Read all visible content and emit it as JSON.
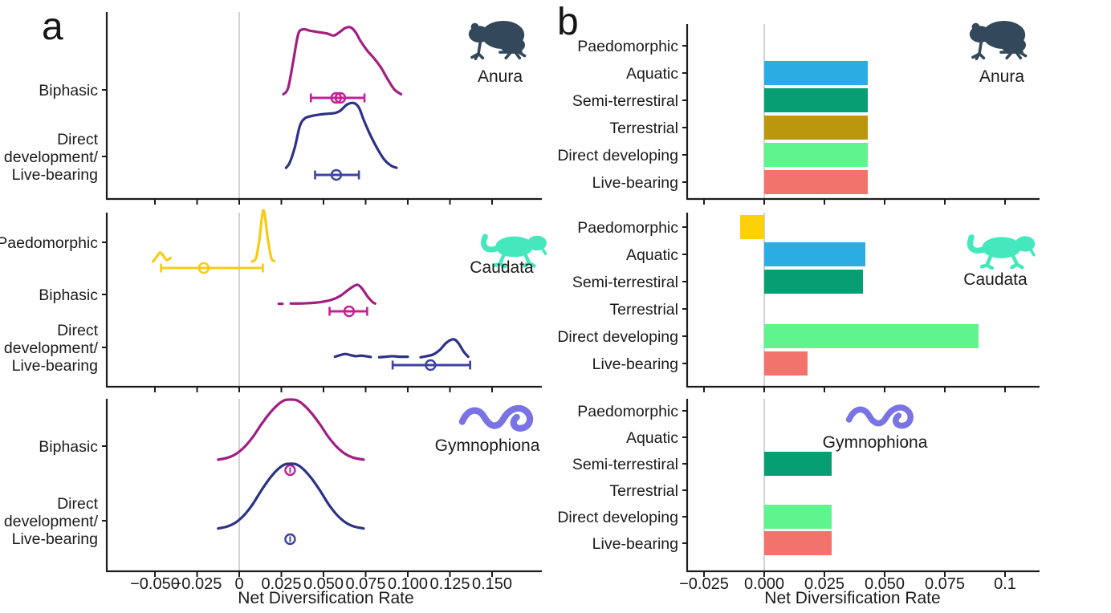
{
  "panels": {
    "a": {
      "letter": "a"
    },
    "b": {
      "letter": "b"
    }
  },
  "colors": {
    "axis": "#1c1c1c",
    "text": "#1b1b1b",
    "zero_line": "#c8c8c8",
    "magenta_line": "#a21e83",
    "magenta_interval": "#c32195",
    "navy_line": "#2c3387",
    "navy_interval": "#3d43a0",
    "yellow_line": "#f7cb11",
    "yellow_interval": "#f7cb11",
    "anura_icon": "#33495b",
    "caudata_icon": "#45e8bd",
    "gymnophiona_icon": "#7a73e6",
    "bar_paedomorphic": "#fdd108",
    "bar_aquatic": "#2bace2",
    "bar_semi_terrestrial": "#079e74",
    "bar_terrestrial": "#ba970c",
    "bar_direct_developing": "#5ff48d",
    "bar_live_bearing": "#f2736c"
  },
  "chart_data": [
    {
      "id": "a",
      "type": "ridgeline-density",
      "xlabel": "Net Diversification Rate",
      "xlim": [
        -0.0785,
        0.178
      ],
      "xticks": [
        -0.05,
        -0.025,
        0,
        0.025,
        0.05,
        0.075,
        0.1,
        0.125,
        0.15
      ],
      "xtick_labels": [
        "−0.050",
        "−0.025",
        "0",
        "0.025",
        "0.050",
        "0.075",
        "0.100",
        "0.125",
        "0.150"
      ],
      "zero_line": 0,
      "height_scale": "relative 0-1 per row",
      "subplots": [
        {
          "taxon": "Anura",
          "icon": "frog-icon",
          "rows": [
            {
              "label": "Biphasic",
              "label_lines": [
                "Biphasic"
              ],
              "color_key": "magenta",
              "density": {
                "segments": [
                  [
                    [
                      0.0262,
                      0.03
                    ],
                    [
                      0.029,
                      0.12
                    ],
                    [
                      0.032,
                      0.5
                    ],
                    [
                      0.035,
                      0.9
                    ],
                    [
                      0.038,
                      0.97
                    ],
                    [
                      0.042,
                      0.95
                    ],
                    [
                      0.047,
                      0.93
                    ],
                    [
                      0.052,
                      0.91
                    ],
                    [
                      0.056,
                      0.88
                    ],
                    [
                      0.059,
                      0.92
                    ],
                    [
                      0.063,
                      0.99
                    ],
                    [
                      0.066,
                      1.0
                    ],
                    [
                      0.069,
                      0.93
                    ],
                    [
                      0.072,
                      0.8
                    ],
                    [
                      0.076,
                      0.66
                    ],
                    [
                      0.08,
                      0.55
                    ],
                    [
                      0.084,
                      0.42
                    ],
                    [
                      0.088,
                      0.25
                    ],
                    [
                      0.092,
                      0.1
                    ],
                    [
                      0.096,
                      0.03
                    ]
                  ]
                ]
              },
              "interval": {
                "low": 0.0425,
                "high": 0.0743,
                "markers": [
                  0.0575,
                  0.06
                ]
              }
            },
            {
              "label": "Direct development/ Live-bearing",
              "label_lines": [
                "Direct",
                "development/",
                "Live-bearing"
              ],
              "color_key": "navy",
              "density": {
                "segments": [
                  [
                    [
                      0.0278,
                      0.03
                    ],
                    [
                      0.03,
                      0.1
                    ],
                    [
                      0.033,
                      0.3
                    ],
                    [
                      0.036,
                      0.58
                    ],
                    [
                      0.039,
                      0.68
                    ],
                    [
                      0.043,
                      0.71
                    ],
                    [
                      0.048,
                      0.73
                    ],
                    [
                      0.053,
                      0.74
                    ],
                    [
                      0.057,
                      0.75
                    ],
                    [
                      0.06,
                      0.78
                    ],
                    [
                      0.064,
                      0.86
                    ],
                    [
                      0.068,
                      0.88
                    ],
                    [
                      0.071,
                      0.82
                    ],
                    [
                      0.074,
                      0.65
                    ],
                    [
                      0.078,
                      0.45
                    ],
                    [
                      0.082,
                      0.28
                    ],
                    [
                      0.086,
                      0.14
                    ],
                    [
                      0.09,
                      0.06
                    ],
                    [
                      0.0933,
                      0.03
                    ]
                  ]
                ]
              },
              "interval": {
                "low": 0.045,
                "high": 0.071,
                "markers": [
                  0.0576
                ]
              }
            }
          ]
        },
        {
          "taxon": "Caudata",
          "icon": "salamander-icon",
          "rows": [
            {
              "label": "Paedomorphic",
              "label_lines": [
                "Paedomorphic"
              ],
              "color_key": "yellow",
              "density": {
                "segments": [
                  [
                    [
                      -0.0511,
                      0.03
                    ],
                    [
                      -0.049,
                      0.12
                    ],
                    [
                      -0.047,
                      0.2
                    ],
                    [
                      -0.045,
                      0.14
                    ],
                    [
                      -0.043,
                      0.06
                    ],
                    [
                      -0.0408,
                      0.1
                    ]
                  ],
                  [
                    [
                      0.0076,
                      0.03
                    ],
                    [
                      0.01,
                      0.1
                    ],
                    [
                      0.012,
                      0.45
                    ],
                    [
                      0.0144,
                      1.0
                    ],
                    [
                      0.017,
                      0.45
                    ],
                    [
                      0.019,
                      0.1
                    ],
                    [
                      0.0208,
                      0.04
                    ]
                  ]
                ]
              },
              "interval": {
                "low": -0.0464,
                "high": 0.014,
                "markers": [
                  -0.021
                ]
              }
            },
            {
              "label": "Biphasic",
              "label_lines": [
                "Biphasic"
              ],
              "color_key": "magenta",
              "density": {
                "segments": [
                  [
                    [
                      0.0235,
                      0.07
                    ],
                    [
                      0.0256,
                      0.07
                    ]
                  ],
                  [
                    [
                      0.0306,
                      0.08
                    ],
                    [
                      0.035,
                      0.08
                    ],
                    [
                      0.04,
                      0.09
                    ],
                    [
                      0.045,
                      0.11
                    ],
                    [
                      0.05,
                      0.15
                    ],
                    [
                      0.055,
                      0.22
                    ],
                    [
                      0.06,
                      0.36
                    ],
                    [
                      0.064,
                      0.55
                    ],
                    [
                      0.068,
                      0.72
                    ],
                    [
                      0.0705,
                      0.76
                    ],
                    [
                      0.073,
                      0.62
                    ],
                    [
                      0.076,
                      0.35
                    ],
                    [
                      0.079,
                      0.14
                    ],
                    [
                      0.0806,
                      0.08
                    ]
                  ]
                ]
              },
              "interval": {
                "low": 0.0536,
                "high": 0.0759,
                "markers": [
                  0.0652
                ]
              }
            },
            {
              "label": "Direct development/ Live-bearing",
              "label_lines": [
                "Direct",
                "development/",
                "Live-bearing"
              ],
              "color_key": "navy",
              "density": {
                "segments": [
                  [
                    [
                      0.0568,
                      0.1
                    ],
                    [
                      0.06,
                      0.16
                    ],
                    [
                      0.063,
                      0.2
                    ],
                    [
                      0.066,
                      0.16
                    ],
                    [
                      0.069,
                      0.12
                    ],
                    [
                      0.072,
                      0.14
                    ],
                    [
                      0.075,
                      0.12
                    ],
                    [
                      0.078,
                      0.09
                    ]
                  ],
                  [
                    [
                      0.083,
                      0.08
                    ],
                    [
                      0.087,
                      0.1
                    ],
                    [
                      0.091,
                      0.12
                    ],
                    [
                      0.095,
                      0.1
                    ],
                    [
                      0.1,
                      0.1
                    ]
                  ],
                  [
                    [
                      0.1076,
                      0.08
                    ],
                    [
                      0.111,
                      0.12
                    ],
                    [
                      0.115,
                      0.18
                    ],
                    [
                      0.119,
                      0.35
                    ],
                    [
                      0.123,
                      0.62
                    ],
                    [
                      0.1272,
                      0.74
                    ],
                    [
                      0.13,
                      0.6
                    ],
                    [
                      0.133,
                      0.3
                    ],
                    [
                      0.1358,
                      0.1
                    ]
                  ]
                ]
              },
              "interval": {
                "low": 0.091,
                "high": 0.137,
                "markers": [
                  0.1135
                ]
              }
            }
          ]
        },
        {
          "taxon": "Gymnophiona",
          "icon": "caecilian-icon",
          "rows": [
            {
              "label": "Biphasic",
              "label_lines": [
                "Biphasic"
              ],
              "color_key": "magenta",
              "density": {
                "segments": [
                  [
                    [
                      -0.0125,
                      0.04
                    ],
                    [
                      -0.007,
                      0.07
                    ],
                    [
                      -0.002,
                      0.13
                    ],
                    [
                      0.003,
                      0.24
                    ],
                    [
                      0.008,
                      0.4
                    ],
                    [
                      0.013,
                      0.6
                    ],
                    [
                      0.018,
                      0.78
                    ],
                    [
                      0.023,
                      0.92
                    ],
                    [
                      0.027,
                      0.99
                    ],
                    [
                      0.0306,
                      1.0
                    ],
                    [
                      0.034,
                      0.99
                    ],
                    [
                      0.038,
                      0.92
                    ],
                    [
                      0.043,
                      0.78
                    ],
                    [
                      0.048,
                      0.6
                    ],
                    [
                      0.053,
                      0.4
                    ],
                    [
                      0.058,
                      0.24
                    ],
                    [
                      0.063,
                      0.13
                    ],
                    [
                      0.068,
                      0.07
                    ],
                    [
                      0.0738,
                      0.04
                    ]
                  ]
                ]
              },
              "interval": {
                "low": null,
                "high": null,
                "markers": [
                  0.0302
                ],
                "point_only": true
              }
            },
            {
              "label": "Direct development/ Live-bearing",
              "label_lines": [
                "Direct",
                "development/",
                "Live-bearing"
              ],
              "color_key": "navy",
              "density": {
                "segments": [
                  [
                    [
                      -0.0125,
                      0.04
                    ],
                    [
                      -0.007,
                      0.07
                    ],
                    [
                      -0.002,
                      0.13
                    ],
                    [
                      0.003,
                      0.24
                    ],
                    [
                      0.008,
                      0.4
                    ],
                    [
                      0.013,
                      0.6
                    ],
                    [
                      0.018,
                      0.78
                    ],
                    [
                      0.023,
                      0.92
                    ],
                    [
                      0.027,
                      0.99
                    ],
                    [
                      0.0306,
                      1.0
                    ],
                    [
                      0.034,
                      0.99
                    ],
                    [
                      0.038,
                      0.92
                    ],
                    [
                      0.043,
                      0.78
                    ],
                    [
                      0.048,
                      0.6
                    ],
                    [
                      0.053,
                      0.4
                    ],
                    [
                      0.058,
                      0.24
                    ],
                    [
                      0.063,
                      0.13
                    ],
                    [
                      0.068,
                      0.07
                    ],
                    [
                      0.0738,
                      0.04
                    ]
                  ]
                ]
              },
              "interval": {
                "low": null,
                "high": null,
                "markers": [
                  0.0302
                ],
                "point_only": true
              }
            }
          ]
        }
      ]
    },
    {
      "id": "b",
      "type": "bar",
      "xlabel": "Net Diversification Rate",
      "xlim": [
        -0.032,
        0.1145
      ],
      "xticks": [
        -0.025,
        0.0,
        0.025,
        0.05,
        0.075,
        0.1
      ],
      "xtick_labels": [
        "−0.025",
        "0.000",
        "0.025",
        "0.050",
        "0.075",
        "0.1"
      ],
      "zero_line": 0,
      "categories": [
        "Paedomorphic",
        "Aquatic",
        "Semi-terrestiral",
        "Terrestrial",
        "Direct developing",
        "Live-bearing"
      ],
      "category_colors": [
        "#fdd108",
        "#2bace2",
        "#079e74",
        "#ba970c",
        "#5ff48d",
        "#f2736c"
      ],
      "subplots": [
        {
          "taxon": "Anura",
          "icon": "frog-icon",
          "values": [
            null,
            0.043,
            0.043,
            0.043,
            0.043,
            0.043
          ]
        },
        {
          "taxon": "Caudata",
          "icon": "salamander-icon",
          "values": [
            -0.01,
            0.042,
            0.041,
            null,
            0.089,
            0.018
          ]
        },
        {
          "taxon": "Gymnophiona",
          "icon": "caecilian-icon",
          "values": [
            null,
            null,
            0.028,
            null,
            0.028,
            0.028
          ]
        }
      ]
    }
  ]
}
